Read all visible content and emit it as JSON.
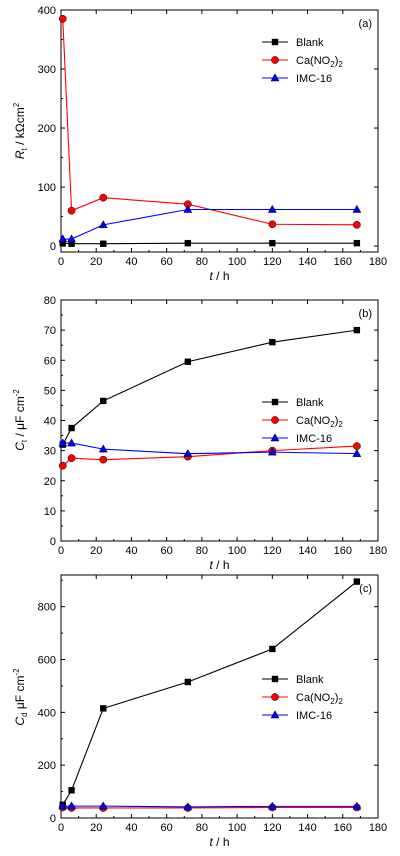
{
  "chart_data": [
    {
      "type": "line",
      "panel_label": "(a)",
      "xlabel": "t / h",
      "ylabel": "Rt / kΩcm²",
      "xlim": [
        0,
        180
      ],
      "ylim": [
        -10,
        400
      ],
      "xticks": [
        0,
        20,
        40,
        60,
        80,
        100,
        120,
        140,
        160,
        180
      ],
      "yticks": [
        0,
        100,
        200,
        300,
        400
      ],
      "grid": false,
      "legend": "top-right",
      "series": [
        {
          "name": "Blank",
          "color": "#000000",
          "marker": "square",
          "x": [
            1,
            6,
            24,
            72,
            120,
            168
          ],
          "y": [
            5,
            4,
            4,
            5,
            5,
            5
          ]
        },
        {
          "name": "Ca(NO2)2",
          "color": "#ff0000",
          "marker": "circle",
          "x": [
            1,
            6,
            24,
            72,
            120,
            168
          ],
          "y": [
            385,
            60,
            82,
            71,
            37,
            36
          ]
        },
        {
          "name": "IMC-16",
          "color": "#0000ff",
          "marker": "triangle",
          "x": [
            1,
            6,
            24,
            72,
            120,
            168
          ],
          "y": [
            12,
            12,
            36,
            62,
            62,
            62
          ]
        }
      ]
    },
    {
      "type": "line",
      "panel_label": "(b)",
      "xlabel": "t / h",
      "ylabel": "Ct / μF cm⁻²",
      "xlim": [
        0,
        180
      ],
      "ylim": [
        0,
        80
      ],
      "xticks": [
        0,
        20,
        40,
        60,
        80,
        100,
        120,
        140,
        160,
        180
      ],
      "yticks": [
        0,
        10,
        20,
        30,
        40,
        50,
        60,
        70,
        80
      ],
      "grid": false,
      "legend": "middle-right",
      "series": [
        {
          "name": "Blank",
          "color": "#000000",
          "marker": "square",
          "x": [
            1,
            6,
            24,
            72,
            120,
            168
          ],
          "y": [
            32,
            37.5,
            46.5,
            59.5,
            66,
            70
          ]
        },
        {
          "name": "Ca(NO2)2",
          "color": "#ff0000",
          "marker": "circle",
          "x": [
            1,
            6,
            24,
            72,
            120,
            168
          ],
          "y": [
            25,
            27.5,
            27,
            28,
            30,
            31.5
          ]
        },
        {
          "name": "IMC-16",
          "color": "#0000ff",
          "marker": "triangle",
          "x": [
            1,
            6,
            24,
            72,
            120,
            168
          ],
          "y": [
            32.5,
            32.5,
            30.5,
            29,
            29.5,
            29
          ]
        }
      ]
    },
    {
      "type": "line",
      "panel_label": "(c)",
      "xlabel": "t / h",
      "ylabel": "Cd / μF cm⁻²",
      "xlim": [
        0,
        180
      ],
      "ylim": [
        0,
        920
      ],
      "xticks": [
        0,
        20,
        40,
        60,
        80,
        100,
        120,
        140,
        160,
        180
      ],
      "yticks": [
        0,
        200,
        400,
        600,
        800
      ],
      "grid": false,
      "legend": "middle-right",
      "series": [
        {
          "name": "Blank",
          "color": "#000000",
          "marker": "square",
          "x": [
            1,
            6,
            24,
            72,
            120,
            168
          ],
          "y": [
            50,
            105,
            415,
            515,
            640,
            895
          ]
        },
        {
          "name": "Ca(NO2)2",
          "color": "#ff0000",
          "marker": "circle",
          "x": [
            1,
            6,
            24,
            72,
            120,
            168
          ],
          "y": [
            40,
            38,
            38,
            38,
            40,
            40
          ]
        },
        {
          "name": "IMC-16",
          "color": "#0000ff",
          "marker": "triangle",
          "x": [
            1,
            6,
            24,
            72,
            120,
            168
          ],
          "y": [
            45,
            45,
            45,
            42,
            44,
            44
          ]
        }
      ]
    }
  ]
}
